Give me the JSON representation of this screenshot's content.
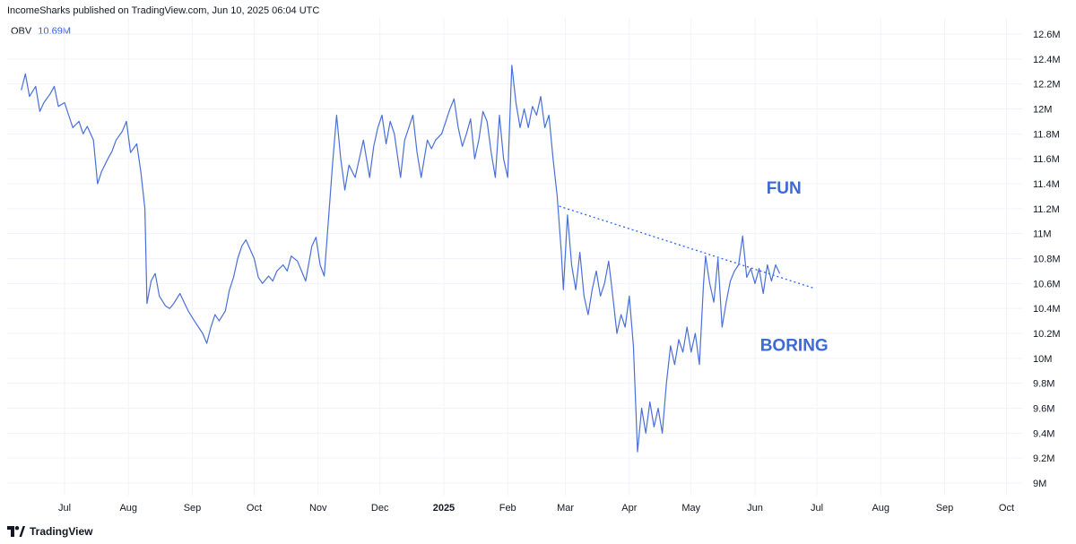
{
  "header": {
    "publisher_line": "IncomeSharks published on TradingView.com, Jun 10, 2025 06:04 UTC"
  },
  "legend": {
    "indicator": "OBV",
    "value": "10.69M"
  },
  "footer": {
    "brand": "TradingView"
  },
  "colors": {
    "series": "#4a6fd8",
    "accent": "#2962ff",
    "annotation": "#3d6ad6",
    "grid": "#f0f3fa"
  },
  "chart_data": {
    "type": "line",
    "title": "",
    "xlabel": "",
    "ylabel": "",
    "ylim": [
      9.0,
      12.6
    ],
    "y_unit": "M",
    "x_ticks": [
      "Jul",
      "Aug",
      "Sep",
      "Oct",
      "Nov",
      "Dec",
      "2025",
      "Feb",
      "Mar",
      "Apr",
      "May",
      "Jun",
      "Jul",
      "Aug",
      "Sep",
      "Oct"
    ],
    "y_ticks": [
      "9M",
      "9.2M",
      "9.4M",
      "9.6M",
      "9.8M",
      "10M",
      "10.2M",
      "10.4M",
      "10.6M",
      "10.8M",
      "11M",
      "11.2M",
      "11.4M",
      "11.6M",
      "11.8M",
      "12M",
      "12.2M",
      "12.4M",
      "12.6M"
    ],
    "grid": true,
    "series": [
      {
        "values": [
          [
            "2024-06-10",
            12.15
          ],
          [
            "2024-06-12",
            12.28
          ],
          [
            "2024-06-14",
            12.1
          ],
          [
            "2024-06-17",
            12.18
          ],
          [
            "2024-06-19",
            11.98
          ],
          [
            "2024-06-21",
            12.05
          ],
          [
            "2024-06-24",
            12.12
          ],
          [
            "2024-06-26",
            12.18
          ],
          [
            "2024-06-28",
            12.02
          ],
          [
            "2024-07-01",
            12.05
          ],
          [
            "2024-07-03",
            11.95
          ],
          [
            "2024-07-05",
            11.85
          ],
          [
            "2024-07-08",
            11.9
          ],
          [
            "2024-07-10",
            11.8
          ],
          [
            "2024-07-12",
            11.86
          ],
          [
            "2024-07-15",
            11.75
          ],
          [
            "2024-07-17",
            11.4
          ],
          [
            "2024-07-19",
            11.5
          ],
          [
            "2024-07-22",
            11.6
          ],
          [
            "2024-07-24",
            11.66
          ],
          [
            "2024-07-26",
            11.75
          ],
          [
            "2024-07-29",
            11.82
          ],
          [
            "2024-07-31",
            11.9
          ],
          [
            "2024-08-02",
            11.65
          ],
          [
            "2024-08-05",
            11.72
          ],
          [
            "2024-08-07",
            11.5
          ],
          [
            "2024-08-09",
            11.2
          ],
          [
            "2024-08-10",
            10.44
          ],
          [
            "2024-08-12",
            10.62
          ],
          [
            "2024-08-14",
            10.68
          ],
          [
            "2024-08-16",
            10.5
          ],
          [
            "2024-08-19",
            10.42
          ],
          [
            "2024-08-21",
            10.4
          ],
          [
            "2024-08-23",
            10.44
          ],
          [
            "2024-08-26",
            10.52
          ],
          [
            "2024-08-28",
            10.45
          ],
          [
            "2024-08-30",
            10.38
          ],
          [
            "2024-09-02",
            10.3
          ],
          [
            "2024-09-04",
            10.25
          ],
          [
            "2024-09-06",
            10.2
          ],
          [
            "2024-09-08",
            10.12
          ],
          [
            "2024-09-10",
            10.25
          ],
          [
            "2024-09-12",
            10.35
          ],
          [
            "2024-09-14",
            10.3
          ],
          [
            "2024-09-17",
            10.38
          ],
          [
            "2024-09-19",
            10.55
          ],
          [
            "2024-09-21",
            10.65
          ],
          [
            "2024-09-23",
            10.8
          ],
          [
            "2024-09-25",
            10.9
          ],
          [
            "2024-09-27",
            10.95
          ],
          [
            "2024-10-01",
            10.8
          ],
          [
            "2024-10-03",
            10.65
          ],
          [
            "2024-10-05",
            10.6
          ],
          [
            "2024-10-08",
            10.66
          ],
          [
            "2024-10-10",
            10.62
          ],
          [
            "2024-10-12",
            10.7
          ],
          [
            "2024-10-15",
            10.75
          ],
          [
            "2024-10-17",
            10.7
          ],
          [
            "2024-10-19",
            10.82
          ],
          [
            "2024-10-22",
            10.78
          ],
          [
            "2024-10-24",
            10.7
          ],
          [
            "2024-10-26",
            10.62
          ],
          [
            "2024-10-29",
            10.9
          ],
          [
            "2024-10-31",
            10.97
          ],
          [
            "2024-11-02",
            10.75
          ],
          [
            "2024-11-04",
            10.66
          ],
          [
            "2024-11-06",
            11.1
          ],
          [
            "2024-11-08",
            11.55
          ],
          [
            "2024-11-10",
            11.95
          ],
          [
            "2024-11-12",
            11.6
          ],
          [
            "2024-11-14",
            11.35
          ],
          [
            "2024-11-16",
            11.55
          ],
          [
            "2024-11-19",
            11.45
          ],
          [
            "2024-11-21",
            11.6
          ],
          [
            "2024-11-23",
            11.75
          ],
          [
            "2024-11-26",
            11.45
          ],
          [
            "2024-11-28",
            11.7
          ],
          [
            "2024-11-30",
            11.85
          ],
          [
            "2024-12-02",
            11.95
          ],
          [
            "2024-12-04",
            11.72
          ],
          [
            "2024-12-06",
            11.9
          ],
          [
            "2024-12-08",
            11.8
          ],
          [
            "2024-12-11",
            11.45
          ],
          [
            "2024-12-13",
            11.75
          ],
          [
            "2024-12-15",
            11.85
          ],
          [
            "2024-12-17",
            11.95
          ],
          [
            "2024-12-19",
            11.65
          ],
          [
            "2024-12-21",
            11.45
          ],
          [
            "2024-12-24",
            11.75
          ],
          [
            "2024-12-26",
            11.68
          ],
          [
            "2024-12-28",
            11.75
          ],
          [
            "2024-12-31",
            11.8
          ],
          [
            "2025-01-02",
            11.9
          ],
          [
            "2025-01-04",
            12.0
          ],
          [
            "2025-01-06",
            12.08
          ],
          [
            "2025-01-08",
            11.85
          ],
          [
            "2025-01-10",
            11.7
          ],
          [
            "2025-01-12",
            11.8
          ],
          [
            "2025-01-14",
            11.92
          ],
          [
            "2025-01-16",
            11.6
          ],
          [
            "2025-01-18",
            11.75
          ],
          [
            "2025-01-20",
            11.98
          ],
          [
            "2025-01-22",
            11.9
          ],
          [
            "2025-01-24",
            11.65
          ],
          [
            "2025-01-26",
            11.45
          ],
          [
            "2025-01-28",
            11.95
          ],
          [
            "2025-01-30",
            11.6
          ],
          [
            "2025-02-01",
            11.45
          ],
          [
            "2025-02-03",
            12.35
          ],
          [
            "2025-02-05",
            12.05
          ],
          [
            "2025-02-07",
            11.85
          ],
          [
            "2025-02-09",
            12.0
          ],
          [
            "2025-02-11",
            11.85
          ],
          [
            "2025-02-13",
            12.02
          ],
          [
            "2025-02-15",
            11.95
          ],
          [
            "2025-02-17",
            12.1
          ],
          [
            "2025-02-19",
            11.85
          ],
          [
            "2025-02-21",
            11.95
          ],
          [
            "2025-02-23",
            11.6
          ],
          [
            "2025-02-25",
            11.3
          ],
          [
            "2025-02-27",
            10.85
          ],
          [
            "2025-02-28",
            10.55
          ],
          [
            "2025-03-02",
            11.15
          ],
          [
            "2025-03-04",
            10.75
          ],
          [
            "2025-03-06",
            10.55
          ],
          [
            "2025-03-08",
            10.85
          ],
          [
            "2025-03-10",
            10.5
          ],
          [
            "2025-03-12",
            10.35
          ],
          [
            "2025-03-14",
            10.55
          ],
          [
            "2025-03-16",
            10.7
          ],
          [
            "2025-03-18",
            10.5
          ],
          [
            "2025-03-20",
            10.6
          ],
          [
            "2025-03-22",
            10.78
          ],
          [
            "2025-03-24",
            10.5
          ],
          [
            "2025-03-26",
            10.2
          ],
          [
            "2025-03-28",
            10.35
          ],
          [
            "2025-03-30",
            10.25
          ],
          [
            "2025-04-01",
            10.5
          ],
          [
            "2025-04-03",
            10.1
          ],
          [
            "2025-04-05",
            9.25
          ],
          [
            "2025-04-07",
            9.6
          ],
          [
            "2025-04-09",
            9.4
          ],
          [
            "2025-04-11",
            9.65
          ],
          [
            "2025-04-13",
            9.45
          ],
          [
            "2025-04-15",
            9.6
          ],
          [
            "2025-04-17",
            9.4
          ],
          [
            "2025-04-19",
            9.8
          ],
          [
            "2025-04-21",
            10.1
          ],
          [
            "2025-04-23",
            9.95
          ],
          [
            "2025-04-25",
            10.15
          ],
          [
            "2025-04-27",
            10.05
          ],
          [
            "2025-04-29",
            10.25
          ],
          [
            "2025-05-01",
            10.05
          ],
          [
            "2025-05-03",
            10.2
          ],
          [
            "2025-05-05",
            9.95
          ],
          [
            "2025-05-07",
            10.6
          ],
          [
            "2025-05-08",
            10.82
          ],
          [
            "2025-05-10",
            10.6
          ],
          [
            "2025-05-12",
            10.45
          ],
          [
            "2025-05-14",
            10.8
          ],
          [
            "2025-05-16",
            10.25
          ],
          [
            "2025-05-18",
            10.45
          ],
          [
            "2025-05-20",
            10.62
          ],
          [
            "2025-05-22",
            10.7
          ],
          [
            "2025-05-24",
            10.75
          ],
          [
            "2025-05-26",
            10.98
          ],
          [
            "2025-05-28",
            10.65
          ],
          [
            "2025-05-30",
            10.72
          ],
          [
            "2025-06-01",
            10.6
          ],
          [
            "2025-06-03",
            10.72
          ],
          [
            "2025-06-05",
            10.52
          ],
          [
            "2025-06-07",
            10.75
          ],
          [
            "2025-06-09",
            10.62
          ],
          [
            "2025-06-11",
            10.75
          ],
          [
            "2025-06-13",
            10.68
          ]
        ]
      }
    ],
    "trendline": {
      "style": "dotted",
      "from": [
        "2025-02-26",
        11.22
      ],
      "to": [
        "2025-06-30",
        10.56
      ]
    },
    "annotations": [
      {
        "text": "FUN",
        "at": [
          "2025-06-15",
          11.32
        ]
      },
      {
        "text": "BORING",
        "at": [
          "2025-06-20",
          10.06
        ]
      }
    ]
  }
}
